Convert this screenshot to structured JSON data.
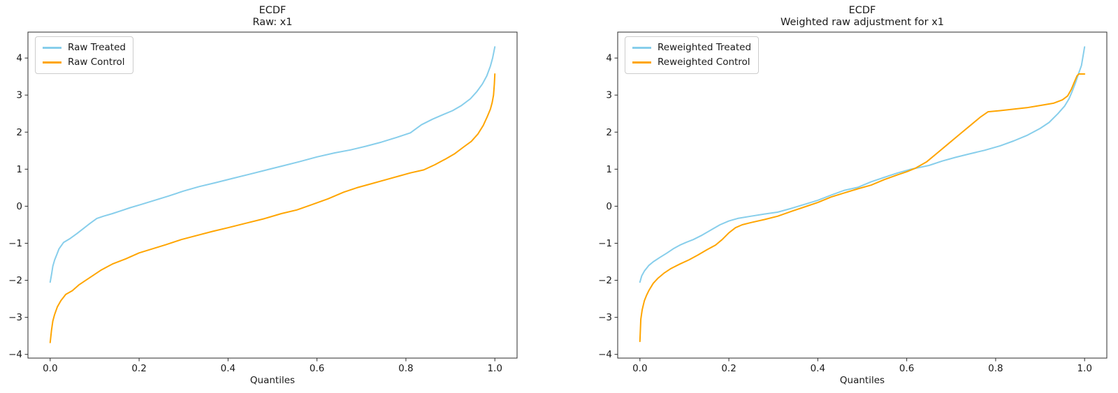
{
  "figure": {
    "background": "#ffffff",
    "text_color": "#1a1a1a",
    "frame_color": "#2b2b2b"
  },
  "chart_data": [
    {
      "type": "line",
      "title": "ECDF",
      "subtitle": "Raw: x1",
      "xlabel": "Quantiles",
      "ylabel": "",
      "xlim": [
        -0.05,
        1.05
      ],
      "ylim": [
        -4.1,
        4.7
      ],
      "xticks": [
        0.0,
        0.2,
        0.4,
        0.6,
        0.8,
        1.0
      ],
      "yticks": [
        -4,
        -3,
        -2,
        -1,
        0,
        1,
        2,
        3,
        4
      ],
      "grid": false,
      "legend_position": "upper left",
      "series": [
        {
          "name": "Raw Treated",
          "color": "#87CEEB",
          "points": [
            [
              0,
              -2.05
            ],
            [
              0.003,
              -1.85
            ],
            [
              0.006,
              -1.62
            ],
            [
              0.01,
              -1.45
            ],
            [
              0.015,
              -1.3
            ],
            [
              0.02,
              -1.15
            ],
            [
              0.03,
              -0.98
            ],
            [
              0.045,
              -0.87
            ],
            [
              0.06,
              -0.74
            ],
            [
              0.075,
              -0.6
            ],
            [
              0.09,
              -0.46
            ],
            [
              0.105,
              -0.33
            ],
            [
              0.12,
              -0.27
            ],
            [
              0.14,
              -0.2
            ],
            [
              0.16,
              -0.12
            ],
            [
              0.18,
              -0.04
            ],
            [
              0.205,
              0.05
            ],
            [
              0.235,
              0.16
            ],
            [
              0.265,
              0.27
            ],
            [
              0.3,
              0.41
            ],
            [
              0.335,
              0.53
            ],
            [
              0.37,
              0.63
            ],
            [
              0.41,
              0.75
            ],
            [
              0.45,
              0.87
            ],
            [
              0.49,
              0.99
            ],
            [
              0.52,
              1.08
            ],
            [
              0.56,
              1.2
            ],
            [
              0.6,
              1.33
            ],
            [
              0.64,
              1.44
            ],
            [
              0.675,
              1.52
            ],
            [
              0.71,
              1.62
            ],
            [
              0.745,
              1.73
            ],
            [
              0.78,
              1.86
            ],
            [
              0.81,
              1.98
            ],
            [
              0.835,
              2.2
            ],
            [
              0.86,
              2.35
            ],
            [
              0.885,
              2.48
            ],
            [
              0.905,
              2.58
            ],
            [
              0.925,
              2.72
            ],
            [
              0.945,
              2.9
            ],
            [
              0.96,
              3.1
            ],
            [
              0.972,
              3.3
            ],
            [
              0.982,
              3.52
            ],
            [
              0.99,
              3.78
            ],
            [
              0.995,
              4.0
            ],
            [
              1.0,
              4.3
            ]
          ]
        },
        {
          "name": "Raw Control",
          "color": "#FFA500",
          "points": [
            [
              0,
              -3.68
            ],
            [
              0.003,
              -3.35
            ],
            [
              0.006,
              -3.1
            ],
            [
              0.01,
              -2.92
            ],
            [
              0.016,
              -2.72
            ],
            [
              0.024,
              -2.55
            ],
            [
              0.035,
              -2.38
            ],
            [
              0.05,
              -2.28
            ],
            [
              0.065,
              -2.12
            ],
            [
              0.08,
              -2.0
            ],
            [
              0.095,
              -1.88
            ],
            [
              0.115,
              -1.72
            ],
            [
              0.14,
              -1.56
            ],
            [
              0.17,
              -1.42
            ],
            [
              0.2,
              -1.26
            ],
            [
              0.23,
              -1.15
            ],
            [
              0.26,
              -1.04
            ],
            [
              0.295,
              -0.9
            ],
            [
              0.33,
              -0.79
            ],
            [
              0.365,
              -0.68
            ],
            [
              0.4,
              -0.58
            ],
            [
              0.44,
              -0.46
            ],
            [
              0.48,
              -0.34
            ],
            [
              0.52,
              -0.2
            ],
            [
              0.555,
              -0.1
            ],
            [
              0.59,
              0.05
            ],
            [
              0.625,
              0.2
            ],
            [
              0.66,
              0.38
            ],
            [
              0.69,
              0.5
            ],
            [
              0.72,
              0.6
            ],
            [
              0.75,
              0.7
            ],
            [
              0.78,
              0.8
            ],
            [
              0.81,
              0.9
            ],
            [
              0.84,
              0.98
            ],
            [
              0.865,
              1.12
            ],
            [
              0.89,
              1.28
            ],
            [
              0.91,
              1.42
            ],
            [
              0.93,
              1.6
            ],
            [
              0.947,
              1.75
            ],
            [
              0.962,
              1.95
            ],
            [
              0.974,
              2.18
            ],
            [
              0.983,
              2.42
            ],
            [
              0.99,
              2.62
            ],
            [
              0.994,
              2.8
            ],
            [
              0.997,
              3.0
            ],
            [
              0.999,
              3.3
            ],
            [
              1.0,
              3.57
            ]
          ]
        }
      ]
    },
    {
      "type": "line",
      "title": "ECDF",
      "subtitle": "Weighted raw adjustment for x1",
      "xlabel": "Quantiles",
      "ylabel": "",
      "xlim": [
        -0.05,
        1.05
      ],
      "ylim": [
        -4.1,
        4.7
      ],
      "xticks": [
        0.0,
        0.2,
        0.4,
        0.6,
        0.8,
        1.0
      ],
      "yticks": [
        -4,
        -3,
        -2,
        -1,
        0,
        1,
        2,
        3,
        4
      ],
      "grid": false,
      "legend_position": "upper left",
      "series": [
        {
          "name": "Reweighted Treated",
          "color": "#87CEEB",
          "points": [
            [
              0,
              -2.05
            ],
            [
              0.004,
              -1.88
            ],
            [
              0.01,
              -1.75
            ],
            [
              0.02,
              -1.6
            ],
            [
              0.03,
              -1.5
            ],
            [
              0.045,
              -1.38
            ],
            [
              0.06,
              -1.27
            ],
            [
              0.075,
              -1.15
            ],
            [
              0.09,
              -1.05
            ],
            [
              0.105,
              -0.97
            ],
            [
              0.12,
              -0.9
            ],
            [
              0.14,
              -0.78
            ],
            [
              0.16,
              -0.64
            ],
            [
              0.18,
              -0.5
            ],
            [
              0.2,
              -0.4
            ],
            [
              0.22,
              -0.33
            ],
            [
              0.25,
              -0.27
            ],
            [
              0.28,
              -0.21
            ],
            [
              0.31,
              -0.16
            ],
            [
              0.34,
              -0.06
            ],
            [
              0.37,
              0.05
            ],
            [
              0.4,
              0.16
            ],
            [
              0.43,
              0.3
            ],
            [
              0.46,
              0.43
            ],
            [
              0.49,
              0.51
            ],
            [
              0.52,
              0.66
            ],
            [
              0.55,
              0.78
            ],
            [
              0.58,
              0.9
            ],
            [
              0.61,
              1.0
            ],
            [
              0.65,
              1.1
            ],
            [
              0.68,
              1.22
            ],
            [
              0.71,
              1.32
            ],
            [
              0.74,
              1.41
            ],
            [
              0.775,
              1.51
            ],
            [
              0.81,
              1.63
            ],
            [
              0.84,
              1.76
            ],
            [
              0.87,
              1.91
            ],
            [
              0.9,
              2.1
            ],
            [
              0.92,
              2.26
            ],
            [
              0.94,
              2.5
            ],
            [
              0.955,
              2.7
            ],
            [
              0.965,
              2.9
            ],
            [
              0.972,
              3.1
            ],
            [
              0.98,
              3.35
            ],
            [
              0.987,
              3.6
            ],
            [
              0.993,
              3.8
            ],
            [
              1.0,
              4.3
            ]
          ]
        },
        {
          "name": "Reweighted Control",
          "color": "#FFA500",
          "points": [
            [
              0,
              -3.65
            ],
            [
              0.002,
              -3.05
            ],
            [
              0.005,
              -2.8
            ],
            [
              0.01,
              -2.55
            ],
            [
              0.015,
              -2.4
            ],
            [
              0.02,
              -2.28
            ],
            [
              0.03,
              -2.08
            ],
            [
              0.04,
              -1.95
            ],
            [
              0.055,
              -1.8
            ],
            [
              0.07,
              -1.68
            ],
            [
              0.09,
              -1.56
            ],
            [
              0.11,
              -1.45
            ],
            [
              0.13,
              -1.32
            ],
            [
              0.15,
              -1.18
            ],
            [
              0.17,
              -1.05
            ],
            [
              0.185,
              -0.9
            ],
            [
              0.2,
              -0.72
            ],
            [
              0.215,
              -0.58
            ],
            [
              0.23,
              -0.5
            ],
            [
              0.25,
              -0.44
            ],
            [
              0.28,
              -0.36
            ],
            [
              0.31,
              -0.27
            ],
            [
              0.34,
              -0.14
            ],
            [
              0.37,
              -0.02
            ],
            [
              0.4,
              0.1
            ],
            [
              0.43,
              0.25
            ],
            [
              0.46,
              0.36
            ],
            [
              0.49,
              0.47
            ],
            [
              0.52,
              0.57
            ],
            [
              0.55,
              0.72
            ],
            [
              0.58,
              0.85
            ],
            [
              0.6,
              0.93
            ],
            [
              0.62,
              1.03
            ],
            [
              0.645,
              1.2
            ],
            [
              0.67,
              1.45
            ],
            [
              0.695,
              1.7
            ],
            [
              0.72,
              1.95
            ],
            [
              0.745,
              2.2
            ],
            [
              0.765,
              2.4
            ],
            [
              0.783,
              2.55
            ],
            [
              0.81,
              2.58
            ],
            [
              0.84,
              2.62
            ],
            [
              0.87,
              2.66
            ],
            [
              0.9,
              2.72
            ],
            [
              0.93,
              2.78
            ],
            [
              0.95,
              2.87
            ],
            [
              0.962,
              2.98
            ],
            [
              0.97,
              3.15
            ],
            [
              0.977,
              3.35
            ],
            [
              0.983,
              3.52
            ],
            [
              0.987,
              3.57
            ],
            [
              1.0,
              3.57
            ]
          ]
        }
      ]
    }
  ]
}
